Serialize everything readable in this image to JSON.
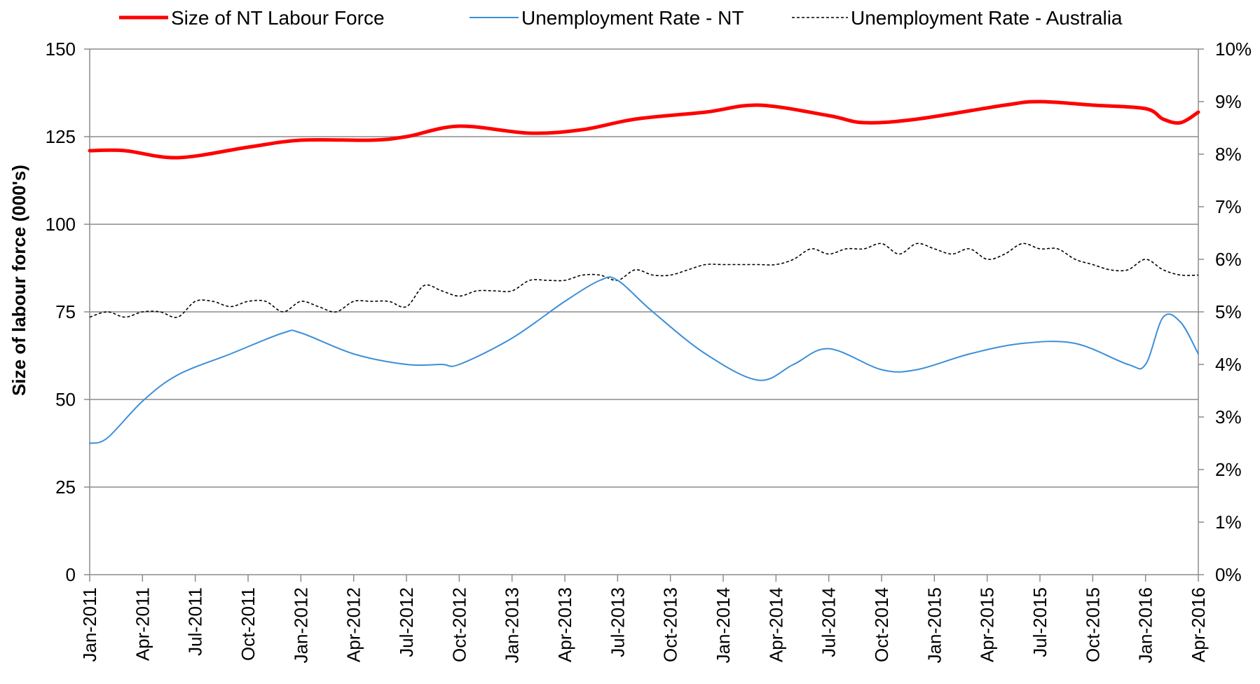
{
  "chart_data": {
    "type": "line",
    "title": "",
    "ylabel": "Size of labour force (000's)",
    "y2label": "",
    "ylim": [
      0,
      150
    ],
    "y2lim": [
      0,
      0.1
    ],
    "yticks": [
      "0",
      "25",
      "50",
      "75",
      "100",
      "125",
      "150"
    ],
    "y2ticks": [
      "0%",
      "1%",
      "2%",
      "3%",
      "4%",
      "5%",
      "6%",
      "7%",
      "8%",
      "9%",
      "10%"
    ],
    "x_tick_labels": [
      "Jan-2011",
      "Apr-2011",
      "Jul-2011",
      "Oct-2011",
      "Jan-2012",
      "Apr-2012",
      "Jul-2012",
      "Oct-2012",
      "Jan-2013",
      "Apr-2013",
      "Jul-2013",
      "Oct-2013",
      "Jan-2014",
      "Apr-2014",
      "Jul-2014",
      "Oct-2014",
      "Jan-2015",
      "Apr-2015",
      "Jul-2015",
      "Oct-2015",
      "Jan-2016",
      "Apr-2016"
    ],
    "x_range": [
      "Jan-2011",
      "Apr-2016"
    ],
    "grid": "horizontal",
    "legend_position": "top",
    "series": [
      {
        "name": "Size of NT Labour Force",
        "axis": "left",
        "color": "#ff0000",
        "style": "solid-thick",
        "x": [
          "2011-01",
          "2011-03",
          "2011-06",
          "2011-10",
          "2012-01",
          "2012-05",
          "2012-07",
          "2012-10",
          "2013-02",
          "2013-05",
          "2013-08",
          "2013-12",
          "2014-03",
          "2014-07",
          "2014-09",
          "2014-12",
          "2015-05",
          "2015-07",
          "2015-10",
          "2016-01",
          "2016-02",
          "2016-03",
          "2016-04"
        ],
        "values": [
          121,
          121,
          119,
          122,
          124,
          124,
          125,
          128,
          126,
          127,
          130,
          132,
          134,
          131,
          129,
          130,
          134,
          135,
          134,
          133,
          130,
          129,
          132
        ]
      },
      {
        "name": "Unemployment Rate - NT",
        "axis": "right",
        "color": "#3c8fd9",
        "style": "solid",
        "x": [
          "2011-01",
          "2011-02",
          "2011-04",
          "2011-06",
          "2011-09",
          "2011-12",
          "2012-01",
          "2012-04",
          "2012-07",
          "2012-09",
          "2012-10",
          "2013-01",
          "2013-04",
          "2013-06",
          "2013-07",
          "2013-09",
          "2013-12",
          "2014-03",
          "2014-05",
          "2014-07",
          "2014-10",
          "2014-12",
          "2015-03",
          "2015-06",
          "2015-09",
          "2015-12",
          "2016-01",
          "2016-02",
          "2016-03",
          "2016-04"
        ],
        "values": [
          0.025,
          0.026,
          0.033,
          0.038,
          0.042,
          0.046,
          0.046,
          0.042,
          0.04,
          0.04,
          0.04,
          0.045,
          0.052,
          0.056,
          0.056,
          0.05,
          0.042,
          0.037,
          0.04,
          0.043,
          0.039,
          0.039,
          0.042,
          0.044,
          0.044,
          0.04,
          0.04,
          0.049,
          0.048,
          0.042
        ]
      },
      {
        "name": "Unemployment Rate - Australia",
        "axis": "right",
        "color": "#000000",
        "style": "dashed",
        "x": [
          "2011-01",
          "2011-02",
          "2011-03",
          "2011-04",
          "2011-05",
          "2011-06",
          "2011-07",
          "2011-08",
          "2011-09",
          "2011-10",
          "2011-11",
          "2011-12",
          "2012-01",
          "2012-02",
          "2012-03",
          "2012-04",
          "2012-05",
          "2012-06",
          "2012-07",
          "2012-08",
          "2012-09",
          "2012-10",
          "2012-11",
          "2012-12",
          "2013-01",
          "2013-02",
          "2013-03",
          "2013-04",
          "2013-05",
          "2013-06",
          "2013-07",
          "2013-08",
          "2013-09",
          "2013-10",
          "2013-11",
          "2013-12",
          "2014-01",
          "2014-02",
          "2014-03",
          "2014-04",
          "2014-05",
          "2014-06",
          "2014-07",
          "2014-08",
          "2014-09",
          "2014-10",
          "2014-11",
          "2014-12",
          "2015-01",
          "2015-02",
          "2015-03",
          "2015-04",
          "2015-05",
          "2015-06",
          "2015-07",
          "2015-08",
          "2015-09",
          "2015-10",
          "2015-11",
          "2015-12",
          "2016-01",
          "2016-02",
          "2016-03",
          "2016-04"
        ],
        "values": [
          0.049,
          0.05,
          0.049,
          0.05,
          0.05,
          0.049,
          0.052,
          0.052,
          0.051,
          0.052,
          0.052,
          0.05,
          0.052,
          0.051,
          0.05,
          0.052,
          0.052,
          0.052,
          0.051,
          0.055,
          0.054,
          0.053,
          0.054,
          0.054,
          0.054,
          0.056,
          0.056,
          0.056,
          0.057,
          0.057,
          0.056,
          0.058,
          0.057,
          0.057,
          0.058,
          0.059,
          0.059,
          0.059,
          0.059,
          0.059,
          0.06,
          0.062,
          0.061,
          0.062,
          0.062,
          0.063,
          0.061,
          0.063,
          0.062,
          0.061,
          0.062,
          0.06,
          0.061,
          0.063,
          0.062,
          0.062,
          0.06,
          0.059,
          0.058,
          0.058,
          0.06,
          0.058,
          0.057,
          0.057
        ]
      }
    ]
  }
}
